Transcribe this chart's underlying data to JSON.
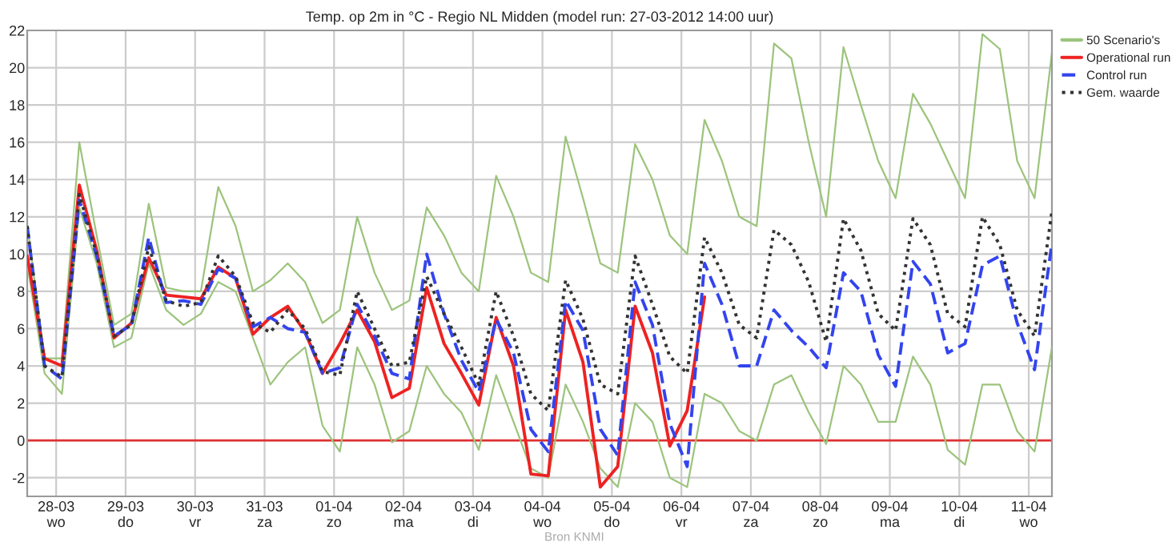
{
  "chart_data": {
    "type": "line",
    "title": "Temp. op 2m in °C - Regio NL Midden (model run: 27-03-2012 14:00 uur)",
    "x": [
      "2012-03-27T14:00",
      "2012-03-27T20:00",
      "2012-03-28T02:00",
      "2012-03-28T08:00",
      "2012-03-28T14:00",
      "2012-03-28T20:00",
      "2012-03-29T02:00",
      "2012-03-29T08:00",
      "2012-03-29T14:00",
      "2012-03-29T20:00",
      "2012-03-30T02:00",
      "2012-03-30T08:00",
      "2012-03-30T14:00",
      "2012-03-30T20:00",
      "2012-03-31T02:00",
      "2012-03-31T08:00",
      "2012-03-31T14:00",
      "2012-03-31T20:00",
      "2012-04-01T02:00",
      "2012-04-01T08:00",
      "2012-04-01T14:00",
      "2012-04-01T20:00",
      "2012-04-02T02:00",
      "2012-04-02T08:00",
      "2012-04-02T14:00",
      "2012-04-02T20:00",
      "2012-04-03T02:00",
      "2012-04-03T08:00",
      "2012-04-03T14:00",
      "2012-04-03T20:00",
      "2012-04-04T02:00",
      "2012-04-04T08:00",
      "2012-04-04T14:00",
      "2012-04-04T20:00",
      "2012-04-05T02:00",
      "2012-04-05T08:00",
      "2012-04-05T14:00",
      "2012-04-05T20:00",
      "2012-04-06T02:00",
      "2012-04-06T08:00",
      "2012-04-06T14:00",
      "2012-04-06T20:00",
      "2012-04-07T02:00",
      "2012-04-07T08:00",
      "2012-04-07T14:00",
      "2012-04-07T20:00",
      "2012-04-08T02:00",
      "2012-04-08T08:00",
      "2012-04-08T14:00",
      "2012-04-08T20:00",
      "2012-04-09T02:00",
      "2012-04-09T08:00",
      "2012-04-09T14:00",
      "2012-04-09T20:00",
      "2012-04-10T02:00",
      "2012-04-10T08:00",
      "2012-04-10T14:00",
      "2012-04-10T20:00",
      "2012-04-11T02:00",
      "2012-04-11T08:00"
    ],
    "xlim": [
      "2012-03-27T14:00",
      "2012-04-11T08:00"
    ],
    "xticks": [
      {
        "value": "2012-03-28",
        "label": "28-03\nwo"
      },
      {
        "value": "2012-03-29",
        "label": "29-03\ndo"
      },
      {
        "value": "2012-03-30",
        "label": "30-03\nvr"
      },
      {
        "value": "2012-03-31",
        "label": "31-03\nza"
      },
      {
        "value": "2012-04-01",
        "label": "01-04\nzo"
      },
      {
        "value": "2012-04-02",
        "label": "02-04\nma"
      },
      {
        "value": "2012-04-03",
        "label": "03-04\ndi"
      },
      {
        "value": "2012-04-04",
        "label": "04-04\nwo"
      },
      {
        "value": "2012-04-05",
        "label": "05-04\ndo"
      },
      {
        "value": "2012-04-06",
        "label": "06-04\nvr"
      },
      {
        "value": "2012-04-07",
        "label": "07-04\nza"
      },
      {
        "value": "2012-04-08",
        "label": "08-04\nzo"
      },
      {
        "value": "2012-04-09",
        "label": "09-04\nma"
      },
      {
        "value": "2012-04-10",
        "label": "10-04\ndi"
      },
      {
        "value": "2012-04-11",
        "label": "11-04\nwo"
      }
    ],
    "ylim": [
      -3,
      22
    ],
    "yticks": [
      -2,
      0,
      2,
      4,
      6,
      8,
      10,
      12,
      14,
      16,
      18,
      20,
      22
    ],
    "grid": true,
    "legend": "top right",
    "ref_lines": [
      {
        "axis": "y",
        "value": 0,
        "label": null,
        "color": "#e03030"
      }
    ],
    "annotations": [
      "Bron KNMI"
    ],
    "series": [
      {
        "name": "50 Scenario's",
        "color": "#9cc47c",
        "line_style": "solid",
        "values": [
          11.6,
          4.4,
          4.4,
          16.0,
          11,
          6.2,
          6.8,
          12.7,
          8.2,
          8.0,
          8.0,
          13.6,
          11.5,
          8.0,
          8.6,
          9.5,
          8.5,
          6.3,
          7.0,
          12.0,
          9.0,
          7.0,
          7.5,
          12.5,
          11,
          9,
          8,
          14.2,
          12,
          9,
          8.5,
          16.3,
          13,
          9.5,
          9,
          15.9,
          14,
          11,
          10,
          17.2,
          15,
          12,
          11.5,
          21.3,
          20.5,
          16,
          12,
          21.1,
          18,
          15,
          13,
          18.6,
          17,
          15,
          13,
          21.8,
          21,
          15,
          13,
          20.8
        ]
      },
      {
        "color": "#9cc47c",
        "line_style": "solid",
        "values": [
          9.5,
          3.6,
          2.5,
          12.5,
          9.5,
          5.0,
          5.5,
          9.5,
          7.0,
          6.2,
          6.8,
          8.5,
          8.0,
          5.5,
          3.0,
          4.2,
          5.0,
          0.8,
          -0.6,
          5.0,
          3.0,
          -0.1,
          0.5,
          4.0,
          2.5,
          1.5,
          -0.5,
          3.5,
          1.0,
          -1.5,
          -2.0,
          3.0,
          1.0,
          -1.5,
          -2.5,
          2.0,
          1.0,
          -2.0,
          -2.5,
          2.5,
          2.0,
          0.5,
          0.0,
          3.0,
          3.5,
          1.5,
          -0.2,
          4.0,
          3.0,
          1.0,
          1.0,
          4.5,
          3.0,
          -0.5,
          -1.3,
          3.0,
          3.0,
          0.5,
          -0.6,
          5.0
        ]
      },
      {
        "name": "Operational run",
        "color": "#ee2222",
        "line_style": "solid",
        "values": [
          9.9,
          4.4,
          4.0,
          13.7,
          10.2,
          5.5,
          6.3,
          9.8,
          7.8,
          7.7,
          7.6,
          9.3,
          8.7,
          5.7,
          6.6,
          7.2,
          5.8,
          3.6,
          5.2,
          7.0,
          5.3,
          2.3,
          2.8,
          8.2,
          5.2,
          3.6,
          1.9,
          6.6,
          4.0,
          -1.8,
          -1.9,
          7.0,
          4.2,
          -2.5,
          -1.4,
          7.2,
          4.7,
          -0.3,
          1.6,
          7.7,
          null,
          null,
          null,
          null,
          null,
          null,
          null,
          null,
          null,
          null,
          null,
          null,
          null,
          null,
          null,
          null,
          null,
          null,
          null,
          null
        ]
      },
      {
        "name": "Control run",
        "color": "#3344ee",
        "line_style": "dashed",
        "values": [
          11.5,
          4.0,
          3.3,
          12.9,
          9.9,
          5.6,
          6.2,
          10.9,
          7.4,
          7.5,
          7.3,
          9.2,
          8.7,
          6.1,
          6.6,
          6.0,
          5.8,
          3.6,
          3.9,
          7.3,
          5.6,
          3.6,
          3.3,
          10.0,
          6.8,
          4.3,
          2.6,
          6.5,
          4.7,
          0.6,
          -0.6,
          7.5,
          5.9,
          0.6,
          -0.8,
          8.5,
          6.2,
          0.9,
          -1.4,
          9.5,
          7.3,
          4.0,
          4.0,
          7.0,
          5.9,
          5.0,
          3.9,
          9.0,
          8.0,
          4.6,
          2.9,
          9.6,
          8.4,
          4.7,
          5.2,
          9.4,
          9.9,
          6.3,
          3.8,
          10.6
        ]
      },
      {
        "name": "Gem. waarde",
        "color": "#333333",
        "line_style": "dotted",
        "values": [
          11.5,
          4.0,
          3.4,
          13.2,
          10.0,
          5.6,
          6.2,
          10.4,
          7.5,
          7.2,
          7.4,
          9.9,
          8.8,
          6.3,
          5.8,
          7.0,
          6.0,
          3.7,
          3.5,
          8.0,
          6.0,
          4.0,
          4.2,
          8.8,
          6.8,
          5.0,
          3.0,
          8.0,
          5.6,
          2.5,
          1.6,
          8.6,
          6.5,
          3.0,
          2.5,
          9.9,
          7.3,
          4.5,
          3.6,
          10.9,
          9.0,
          6.2,
          5.5,
          11.3,
          10.5,
          8.5,
          5.3,
          11.9,
          10.2,
          6.8,
          5.9,
          11.9,
          10.5,
          6.8,
          6.1,
          12.0,
          10.5,
          7.0,
          5.6,
          12.3
        ]
      }
    ]
  }
}
